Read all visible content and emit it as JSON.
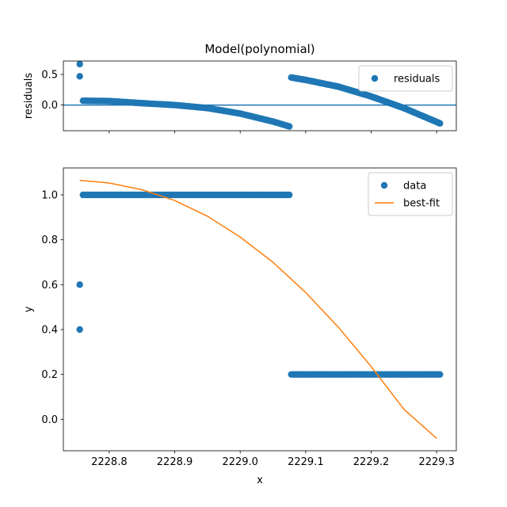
{
  "chart_data": [
    {
      "type": "scatter",
      "title": "Model(polynomial)",
      "xlabel": "",
      "ylabel": "residuals",
      "xlim": [
        2228.73,
        2229.33
      ],
      "ylim": [
        -0.42,
        0.72
      ],
      "yticks": [
        0.0,
        0.5
      ],
      "ytick_labels": [
        "0.0",
        "0.5"
      ],
      "xticks": [
        2228.8,
        2228.9,
        2229.0,
        2229.1,
        2229.2,
        2229.3
      ],
      "hline": 0.0,
      "legend_position": "top-right",
      "colors": {
        "residuals": "#1f77b4",
        "zero_line": "#1f77b4"
      },
      "series": [
        {
          "name": "residuals",
          "x_range": [
            2228.755,
            2229.305
          ],
          "outliers": [
            {
              "x": 2228.755,
              "y": 0.67
            },
            {
              "x": 2228.755,
              "y": 0.47
            }
          ],
          "segments": [
            {
              "x0": 2228.76,
              "x1": 2229.075,
              "values": [
                [
                  2228.76,
                  0.07
                ],
                [
                  2228.8,
                  0.065
                ],
                [
                  2228.85,
                  0.03
                ],
                [
                  2228.9,
                  0.0
                ],
                [
                  2228.95,
                  -0.05
                ],
                [
                  2229.0,
                  -0.14
                ],
                [
                  2229.05,
                  -0.27
                ],
                [
                  2229.075,
                  -0.35
                ]
              ]
            },
            {
              "x0": 2229.078,
              "x1": 2229.305,
              "values": [
                [
                  2229.078,
                  0.45
                ],
                [
                  2229.1,
                  0.41
                ],
                [
                  2229.15,
                  0.3
                ],
                [
                  2229.2,
                  0.14
                ],
                [
                  2229.25,
                  -0.05
                ],
                [
                  2229.305,
                  -0.3
                ]
              ]
            }
          ]
        }
      ]
    },
    {
      "type": "scatter",
      "title": "",
      "xlabel": "x",
      "ylabel": "y",
      "xlim": [
        2228.73,
        2229.33
      ],
      "ylim": [
        -0.14,
        1.12
      ],
      "yticks": [
        0.0,
        0.2,
        0.4,
        0.6,
        0.8,
        1.0
      ],
      "ytick_labels": [
        "0.0",
        "0.2",
        "0.4",
        "0.6",
        "0.8",
        "1.0"
      ],
      "xticks": [
        2228.8,
        2228.9,
        2229.0,
        2229.1,
        2229.2,
        2229.3
      ],
      "xtick_labels": [
        "2228.8",
        "2228.9",
        "2229.0",
        "2229.1",
        "2229.2",
        "2229.3"
      ],
      "legend_position": "top-right",
      "colors": {
        "data": "#1f77b4",
        "best-fit": "#ff7f0e"
      },
      "series": [
        {
          "name": "data",
          "outliers": [
            {
              "x": 2228.755,
              "y": 0.6
            },
            {
              "x": 2228.755,
              "y": 0.4
            }
          ],
          "segments": [
            {
              "x0": 2228.76,
              "x1": 2229.075,
              "y": 1.0
            },
            {
              "x0": 2229.078,
              "x1": 2229.305,
              "y": 0.2
            }
          ]
        },
        {
          "name": "best-fit",
          "line_points": [
            [
              2228.755,
              1.065
            ],
            [
              2228.8,
              1.053
            ],
            [
              2228.85,
              1.023
            ],
            [
              2228.9,
              0.975
            ],
            [
              2228.95,
              0.905
            ],
            [
              2229.0,
              0.812
            ],
            [
              2229.05,
              0.7
            ],
            [
              2229.1,
              0.565
            ],
            [
              2229.15,
              0.41
            ],
            [
              2229.2,
              0.235
            ],
            [
              2229.25,
              0.045
            ],
            [
              2229.3,
              -0.085
            ]
          ]
        }
      ]
    }
  ]
}
